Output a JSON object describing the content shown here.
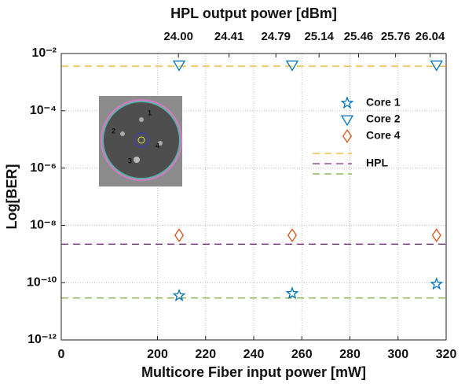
{
  "chart_data": {
    "type": "scatter",
    "title": "HPL output power [dBm]",
    "xlabel": "Multicore Fiber input power [mW]",
    "ylabel": "Log[BER]",
    "xlim": [
      160,
      320
    ],
    "xticks": [
      {
        "value": 160,
        "label": "0"
      },
      200,
      220,
      240,
      260,
      280,
      300,
      320
    ],
    "x2lim": [
      23.05,
      26.17
    ],
    "x2ticks": [
      {
        "value": 24,
        "label": "24.00"
      },
      24.41,
      24.79,
      25.14,
      25.46,
      25.76,
      26.04
    ],
    "ylim": [
      1e-12,
      0.01
    ],
    "log_y": true,
    "yticks": [
      {
        "value": 0.01,
        "label": "10⁻²"
      },
      {
        "value": 0.0001,
        "label": "10⁻⁴"
      },
      {
        "value": 1e-06,
        "label": "10⁻⁶"
      },
      {
        "value": 1e-08,
        "label": "10⁻⁸"
      },
      {
        "value": 1e-10,
        "label": "10⁻¹⁰"
      },
      {
        "value": 1e-12,
        "label": "10⁻¹²"
      }
    ],
    "grid": true,
    "x": [
      209,
      256,
      316
    ],
    "series": [
      {
        "name": "Core 1",
        "color": "#0072bd",
        "marker": "star",
        "values": [
          3.5e-11,
          4.2e-11,
          8.9e-11
        ]
      },
      {
        "name": "Core 2",
        "color": "#0072bd",
        "marker": "triangle-down",
        "values": [
          0.004,
          0.004,
          0.004
        ]
      },
      {
        "name": "Core 4",
        "color": "#d95319",
        "marker": "diamond",
        "values": [
          4.5e-09,
          4.5e-09,
          4.5e-09
        ]
      }
    ],
    "reference_lines": [
      {
        "color": "#edb120",
        "value": 0.0036
      },
      {
        "name": "HPL",
        "color": "#7e2f8e",
        "value": 2.2e-09
      },
      {
        "color": "#77ac30",
        "value": 2.9e-11
      }
    ],
    "inset": {
      "labels": [
        "1",
        "2",
        "3",
        "4"
      ]
    }
  }
}
